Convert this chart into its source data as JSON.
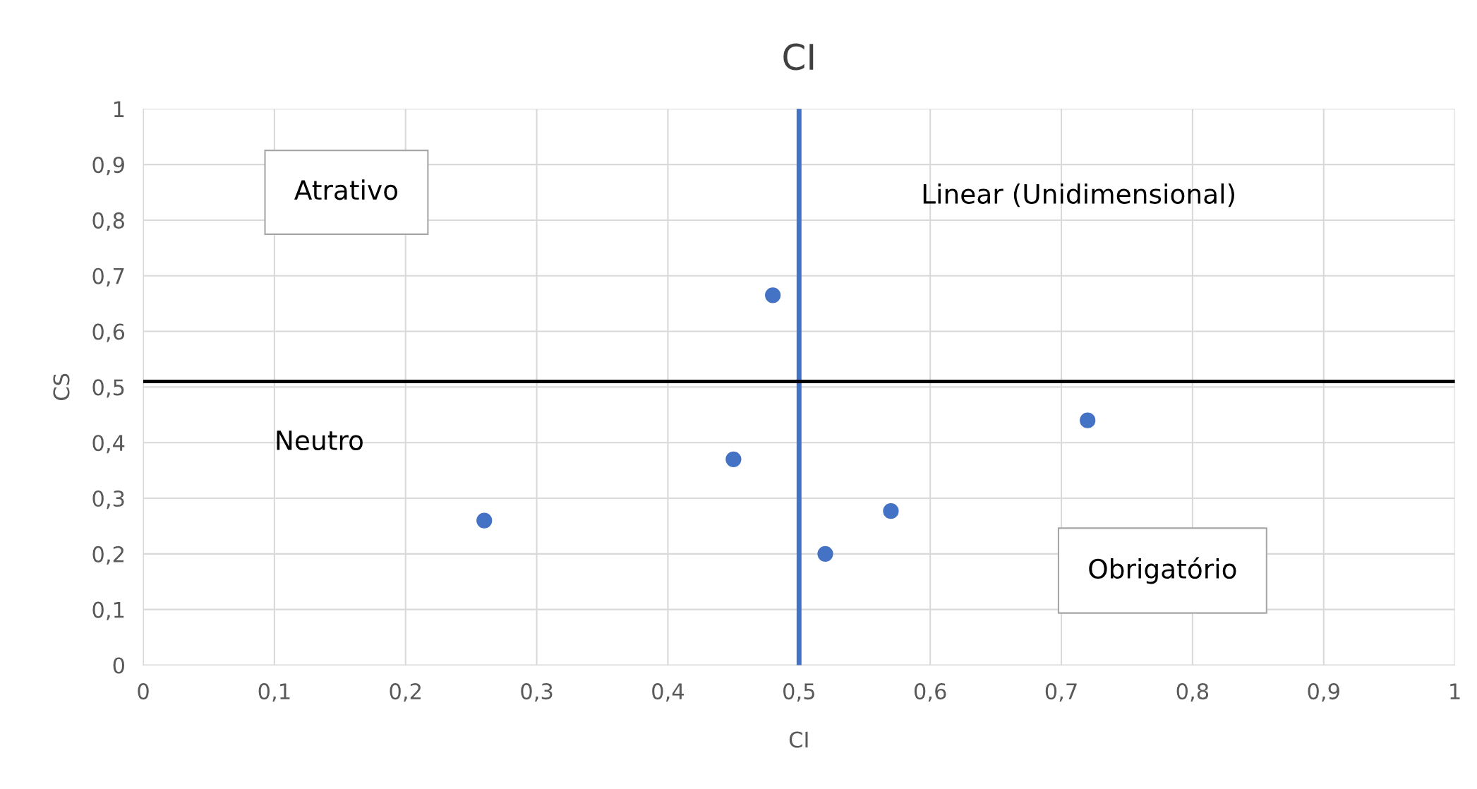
{
  "chart_data": {
    "type": "scatter",
    "title": "CI",
    "xlabel": "CI",
    "ylabel": "CS",
    "x": [
      0.48,
      0.45,
      0.26,
      0.52,
      0.57,
      0.72
    ],
    "values": [
      0.665,
      0.37,
      0.26,
      0.2,
      0.277,
      0.44
    ],
    "color": "#4472c4",
    "marker": "circle",
    "xlim": [
      0,
      1
    ],
    "xticks": [
      {
        "value": 0,
        "label": "0"
      },
      {
        "value": 0.1,
        "label": "0,1"
      },
      {
        "value": 0.2,
        "label": "0,2"
      },
      {
        "value": 0.3,
        "label": "0,3"
      },
      {
        "value": 0.4,
        "label": "0,4"
      },
      {
        "value": 0.5,
        "label": "0,5"
      },
      {
        "value": 0.6,
        "label": "0,6"
      },
      {
        "value": 0.7,
        "label": "0,7"
      },
      {
        "value": 0.8,
        "label": "0,8"
      },
      {
        "value": 0.9,
        "label": "0,9"
      },
      {
        "value": 1,
        "label": "1"
      }
    ],
    "ylim": [
      0,
      1
    ],
    "yticks": [
      {
        "value": 0,
        "label": "0"
      },
      {
        "value": 0.1,
        "label": "0,1"
      },
      {
        "value": 0.2,
        "label": "0,2"
      },
      {
        "value": 0.3,
        "label": "0,3"
      },
      {
        "value": 0.4,
        "label": "0,4"
      },
      {
        "value": 0.5,
        "label": "0,5"
      },
      {
        "value": 0.6,
        "label": "0,6"
      },
      {
        "value": 0.7,
        "label": "0,7"
      },
      {
        "value": 0.8,
        "label": "0,8"
      },
      {
        "value": 0.9,
        "label": "0,9"
      },
      {
        "value": 1,
        "label": "1"
      }
    ],
    "grid": true,
    "ref_lines": [
      {
        "axis": "x",
        "value": 0.5,
        "color": "#4472c4"
      },
      {
        "axis": "y",
        "value": 0.51,
        "color": "#000000"
      }
    ],
    "annotations": [
      "Atrativo",
      "Linear (Unidimensional)",
      "Neutro",
      "Obrigatório"
    ]
  }
}
